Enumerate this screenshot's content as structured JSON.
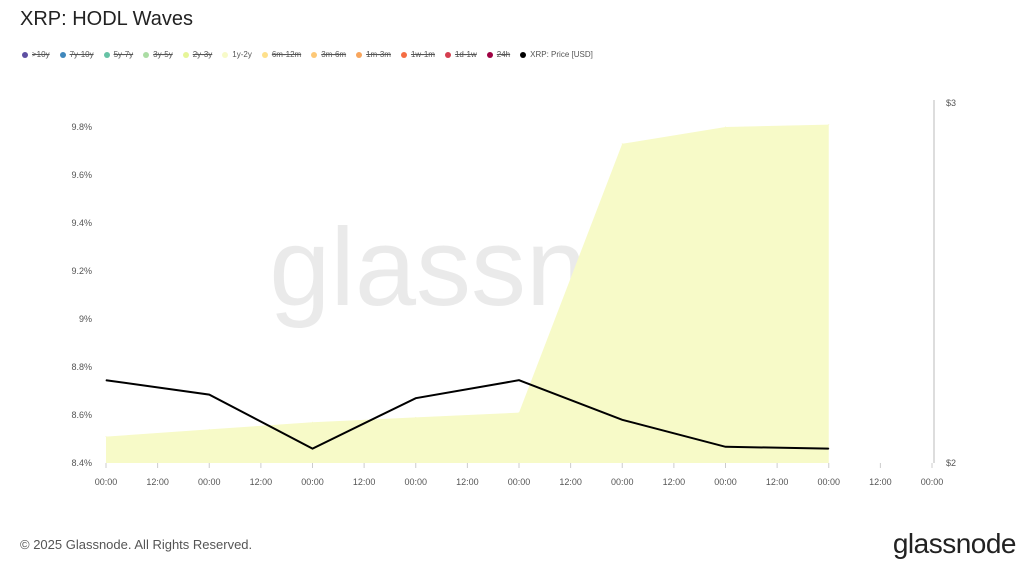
{
  "title": "XRP: HODL Waves",
  "legend": [
    {
      "label": ">10y",
      "color": "#5e4fa2",
      "active": false
    },
    {
      "label": "7y-10y",
      "color": "#3f87bc",
      "active": false
    },
    {
      "label": "5y-7y",
      "color": "#66c2a5",
      "active": false
    },
    {
      "label": "3y-5y",
      "color": "#abdda4",
      "active": false
    },
    {
      "label": "2y-3y",
      "color": "#e6f598",
      "active": false
    },
    {
      "label": "1y-2y",
      "color": "#f7fac8",
      "active": true
    },
    {
      "label": "6m-12m",
      "color": "#fee08b",
      "active": false
    },
    {
      "label": "3m-6m",
      "color": "#fdc877",
      "active": false
    },
    {
      "label": "1m-3m",
      "color": "#f8a55c",
      "active": false
    },
    {
      "label": "1w-1m",
      "color": "#f46d43",
      "active": false
    },
    {
      "label": "1d-1w",
      "color": "#d53e4f",
      "active": false
    },
    {
      "label": "24h",
      "color": "#9e0142",
      "active": false
    },
    {
      "label": "XRP: Price [USD]",
      "color": "#000000",
      "active": true
    }
  ],
  "chart_data": {
    "type": "area",
    "x_tick_labels": [
      "00:00",
      "12:00",
      "00:00",
      "12:00",
      "00:00",
      "12:00",
      "00:00",
      "12:00",
      "00:00",
      "12:00",
      "00:00",
      "12:00",
      "00:00",
      "12:00",
      "00:00",
      "12:00",
      "00:00"
    ],
    "y_left": {
      "ticks": [
        "8.4%",
        "8.6%",
        "8.8%",
        "9%",
        "9.2%",
        "9.4%",
        "9.6%",
        "9.8%"
      ],
      "range": [
        8.4,
        9.8
      ]
    },
    "y_right": {
      "ticks": [
        "$2",
        "$3"
      ],
      "range": [
        2,
        3
      ]
    },
    "series": [
      {
        "name": "1y-2y",
        "axis": "left",
        "type": "area",
        "color": "#f7fac8",
        "x": [
          0,
          1,
          2,
          3,
          4,
          5,
          6,
          7
        ],
        "values": [
          8.51,
          8.54,
          8.57,
          8.59,
          8.61,
          9.73,
          9.8,
          9.81
        ]
      },
      {
        "name": "XRP: Price [USD]",
        "axis": "right",
        "type": "line",
        "color": "#000000",
        "x": [
          0,
          1,
          2,
          3,
          4,
          5,
          6,
          7
        ],
        "values": [
          2.23,
          2.19,
          2.04,
          2.18,
          2.23,
          2.12,
          2.045,
          2.04
        ]
      }
    ],
    "grid": false,
    "legend_position": "top-left"
  },
  "watermark": "glassnode",
  "footer": "© 2025 Glassnode. All Rights Reserved.",
  "logo": "glassnode"
}
